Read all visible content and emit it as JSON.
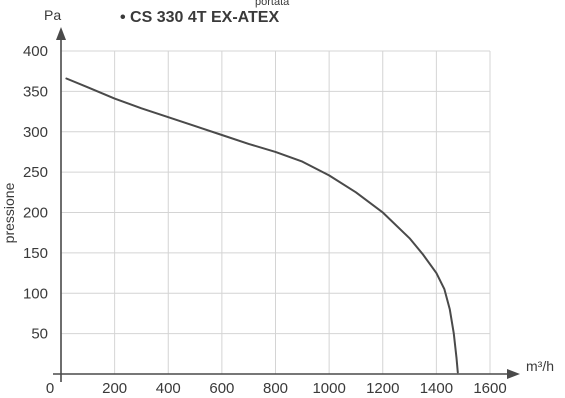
{
  "chart_data": {
    "type": "line",
    "title": "• CS 330 4T EX-ATEX",
    "top_text": "portata",
    "xlabel": "m³/h",
    "ylabel": "pressione",
    "yunit": "Pa",
    "xlim": [
      0,
      1600
    ],
    "ylim": [
      0,
      400
    ],
    "x_ticks": [
      0,
      200,
      400,
      600,
      800,
      1000,
      1200,
      1400,
      1600
    ],
    "y_ticks": [
      50,
      100,
      150,
      200,
      250,
      300,
      350,
      400
    ],
    "grid": true,
    "series": [
      {
        "color": "#4a4a4a",
        "points": [
          [
            20,
            366
          ],
          [
            100,
            355
          ],
          [
            200,
            341
          ],
          [
            300,
            329
          ],
          [
            400,
            318
          ],
          [
            500,
            307
          ],
          [
            600,
            296
          ],
          [
            700,
            285
          ],
          [
            800,
            275
          ],
          [
            900,
            263
          ],
          [
            1000,
            246
          ],
          [
            1100,
            225
          ],
          [
            1200,
            200
          ],
          [
            1300,
            168
          ],
          [
            1350,
            148
          ],
          [
            1400,
            125
          ],
          [
            1430,
            105
          ],
          [
            1450,
            80
          ],
          [
            1465,
            50
          ],
          [
            1475,
            20
          ],
          [
            1480,
            2
          ]
        ]
      }
    ]
  }
}
